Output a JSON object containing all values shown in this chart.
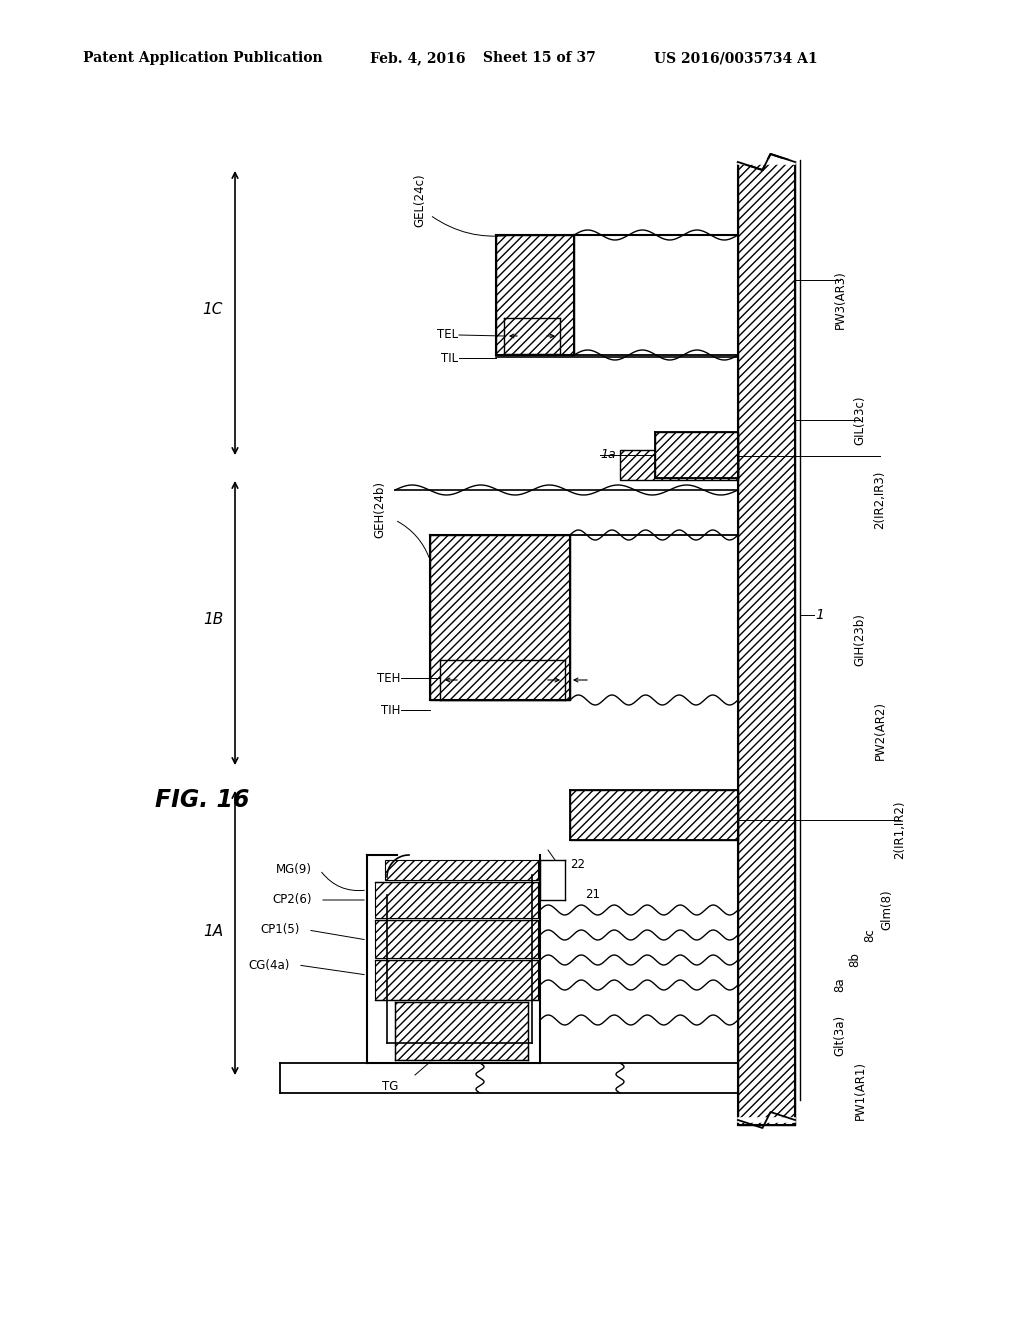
{
  "bg_color": "#ffffff",
  "header_left": "Patent Application Publication",
  "header_date": "Feb. 4, 2016",
  "header_sheet": "Sheet 15 of 37",
  "header_patent": "US 2016/0035734 A1",
  "fig_label": "FIG. 16"
}
